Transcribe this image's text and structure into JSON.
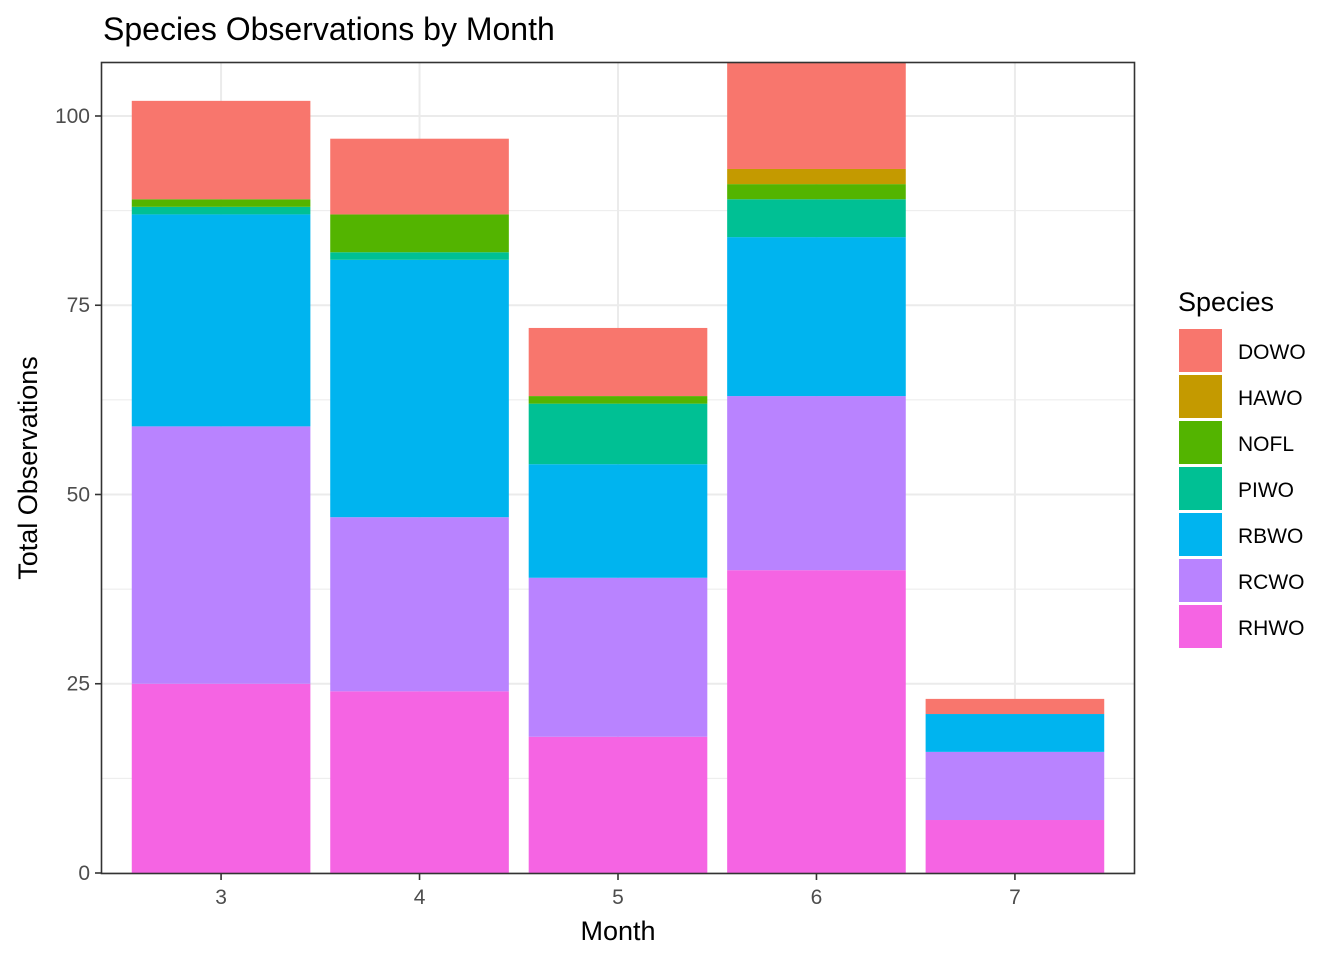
{
  "chart_data": {
    "type": "bar",
    "stacked": true,
    "title": "Species Observations by Month",
    "xlabel": "Month",
    "ylabel": "Total Observations",
    "categories": [
      "3",
      "4",
      "5",
      "6",
      "7"
    ],
    "ylim": [
      0,
      107
    ],
    "yticks": [
      0,
      25,
      50,
      75,
      100
    ],
    "grid": true,
    "legend": {
      "title": "Species",
      "position": "right"
    },
    "series": [
      {
        "name": "RHWO",
        "color": "#F564E3",
        "values": [
          25,
          24,
          18,
          40,
          7
        ]
      },
      {
        "name": "RCWO",
        "color": "#B983FF",
        "values": [
          34,
          23,
          21,
          23,
          9
        ]
      },
      {
        "name": "RBWO",
        "color": "#00B4EF",
        "values": [
          28,
          34,
          15,
          21,
          5
        ]
      },
      {
        "name": "PIWO",
        "color": "#00C094",
        "values": [
          1,
          1,
          8,
          5,
          0
        ]
      },
      {
        "name": "NOFL",
        "color": "#53B400",
        "values": [
          1,
          5,
          1,
          2,
          0
        ]
      },
      {
        "name": "HAWO",
        "color": "#C49A00",
        "values": [
          0,
          0,
          0,
          2,
          0
        ]
      },
      {
        "name": "DOWO",
        "color": "#F8766D",
        "values": [
          13,
          10,
          9,
          14,
          2
        ]
      }
    ],
    "legend_order": [
      "DOWO",
      "HAWO",
      "NOFL",
      "PIWO",
      "RBWO",
      "RCWO",
      "RHWO"
    ]
  }
}
